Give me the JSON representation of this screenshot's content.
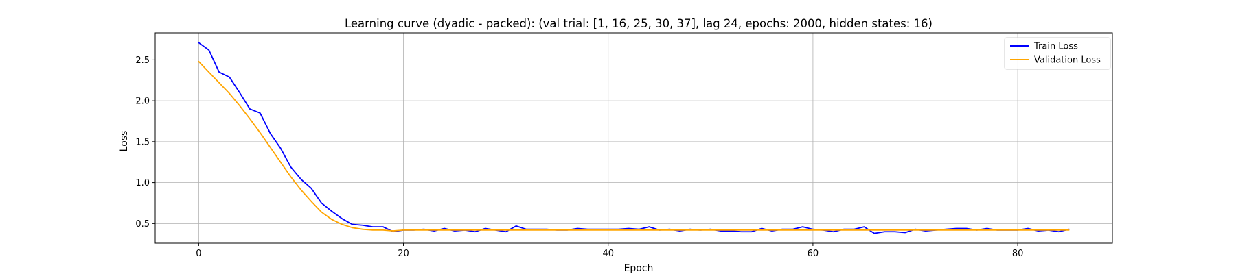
{
  "chart_data": {
    "type": "line",
    "title": "Learning curve (dyadic - packed): (val trial: [1, 16, 25, 30, 37], lag 24, epochs: 2000, hidden states: 16)",
    "xlabel": "Epoch",
    "ylabel": "Loss",
    "xlim": [
      -4.25,
      89.25
    ],
    "ylim": [
      0.26,
      2.83
    ],
    "xticks": [
      0,
      20,
      40,
      60,
      80
    ],
    "xtick_labels": [
      "0",
      "20",
      "40",
      "60",
      "80"
    ],
    "yticks": [
      0.5,
      1.0,
      1.5,
      2.0,
      2.5
    ],
    "ytick_labels": [
      "0.5",
      "1.0",
      "1.5",
      "2.0",
      "2.5"
    ],
    "grid": true,
    "legend_position": "top-right",
    "x": [
      0,
      1,
      2,
      3,
      4,
      5,
      6,
      7,
      8,
      9,
      10,
      11,
      12,
      13,
      14,
      15,
      16,
      17,
      18,
      19,
      20,
      21,
      22,
      23,
      24,
      25,
      26,
      27,
      28,
      29,
      30,
      31,
      32,
      33,
      34,
      35,
      36,
      37,
      38,
      39,
      40,
      41,
      42,
      43,
      44,
      45,
      46,
      47,
      48,
      49,
      50,
      51,
      52,
      53,
      54,
      55,
      56,
      57,
      58,
      59,
      60,
      61,
      62,
      63,
      64,
      65,
      66,
      67,
      68,
      69,
      70,
      71,
      72,
      73,
      74,
      75,
      76,
      77,
      78,
      79,
      80,
      81,
      82,
      83,
      84,
      85
    ],
    "series": [
      {
        "name": "Train Loss",
        "color": "#0000ff",
        "values": [
          2.71,
          2.62,
          2.35,
          2.29,
          2.1,
          1.9,
          1.85,
          1.6,
          1.42,
          1.19,
          1.04,
          0.93,
          0.75,
          0.65,
          0.56,
          0.49,
          0.48,
          0.46,
          0.46,
          0.4,
          0.42,
          0.42,
          0.43,
          0.41,
          0.44,
          0.41,
          0.42,
          0.4,
          0.44,
          0.42,
          0.4,
          0.47,
          0.43,
          0.43,
          0.43,
          0.42,
          0.42,
          0.44,
          0.43,
          0.43,
          0.43,
          0.43,
          0.44,
          0.43,
          0.46,
          0.42,
          0.43,
          0.41,
          0.43,
          0.42,
          0.43,
          0.41,
          0.41,
          0.4,
          0.4,
          0.44,
          0.41,
          0.43,
          0.43,
          0.46,
          0.43,
          0.42,
          0.4,
          0.43,
          0.43,
          0.46,
          0.38,
          0.4,
          0.4,
          0.39,
          0.43,
          0.41,
          0.42,
          0.43,
          0.44,
          0.44,
          0.42,
          0.44,
          0.42,
          0.42,
          0.42,
          0.44,
          0.41,
          0.42,
          0.4,
          0.43
        ]
      },
      {
        "name": "Validation Loss",
        "color": "#ffa500",
        "values": [
          2.48,
          2.35,
          2.22,
          2.09,
          1.94,
          1.78,
          1.61,
          1.43,
          1.25,
          1.07,
          0.91,
          0.77,
          0.64,
          0.55,
          0.49,
          0.45,
          0.43,
          0.42,
          0.42,
          0.41,
          0.42,
          0.42,
          0.42,
          0.42,
          0.42,
          0.42,
          0.42,
          0.42,
          0.42,
          0.42,
          0.42,
          0.42,
          0.42,
          0.42,
          0.42,
          0.42,
          0.42,
          0.42,
          0.42,
          0.42,
          0.42,
          0.42,
          0.42,
          0.42,
          0.42,
          0.42,
          0.42,
          0.42,
          0.42,
          0.42,
          0.42,
          0.42,
          0.42,
          0.42,
          0.42,
          0.42,
          0.42,
          0.42,
          0.42,
          0.42,
          0.42,
          0.42,
          0.42,
          0.42,
          0.42,
          0.42,
          0.42,
          0.42,
          0.42,
          0.42,
          0.42,
          0.42,
          0.42,
          0.42,
          0.42,
          0.42,
          0.42,
          0.42,
          0.42,
          0.42,
          0.42,
          0.42,
          0.42,
          0.42,
          0.42,
          0.42
        ]
      }
    ]
  }
}
